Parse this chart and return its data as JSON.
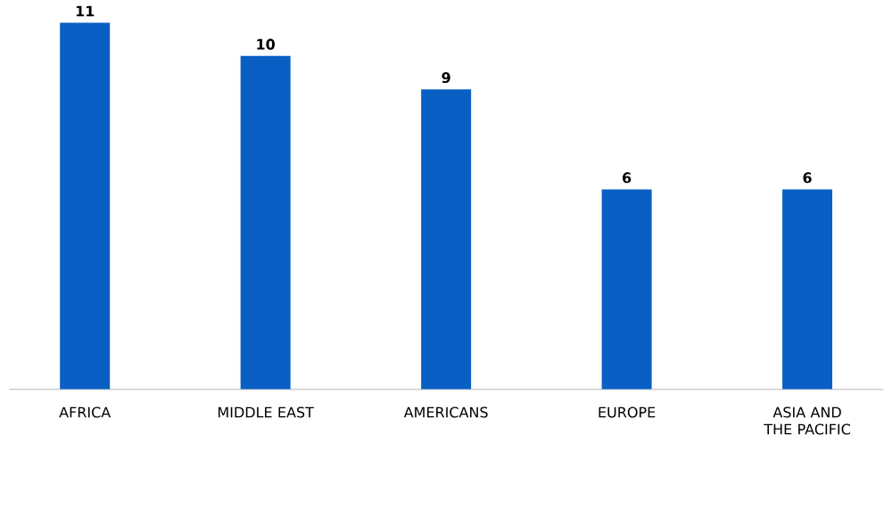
{
  "chart_data": {
    "type": "bar",
    "categories": [
      "AFRICA",
      "MIDDLE EAST",
      "AMERICANS",
      "EUROPE",
      "ASIA AND THE PACIFIC"
    ],
    "values": [
      11,
      10,
      9,
      6,
      6
    ],
    "color": "#0a5fc4",
    "data_labels": true
  }
}
